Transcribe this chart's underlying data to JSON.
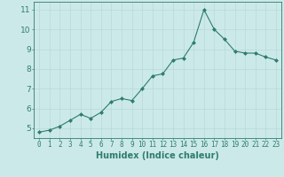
{
  "x": [
    0,
    1,
    2,
    3,
    4,
    5,
    6,
    7,
    8,
    9,
    10,
    11,
    12,
    13,
    14,
    15,
    16,
    17,
    18,
    19,
    20,
    21,
    22,
    23
  ],
  "y": [
    4.8,
    4.9,
    5.1,
    5.4,
    5.7,
    5.5,
    5.8,
    6.35,
    6.5,
    6.4,
    7.0,
    7.65,
    7.75,
    8.45,
    8.55,
    9.35,
    11.0,
    10.0,
    9.5,
    8.9,
    8.8,
    8.8,
    8.6,
    8.45
  ],
  "line_color": "#2e7d6e",
  "marker": "D",
  "marker_size": 2.0,
  "bg_color": "#cce9e9",
  "grid_color": "#b8d8d8",
  "xlabel": "Humidex (Indice chaleur)",
  "xlabel_fontsize": 7,
  "tick_fontsize": 5.5,
  "ytick_fontsize": 6.5,
  "ylabel_ticks": [
    5,
    6,
    7,
    8,
    9,
    10,
    11
  ],
  "xlim": [
    -0.5,
    23.5
  ],
  "ylim": [
    4.5,
    11.4
  ]
}
